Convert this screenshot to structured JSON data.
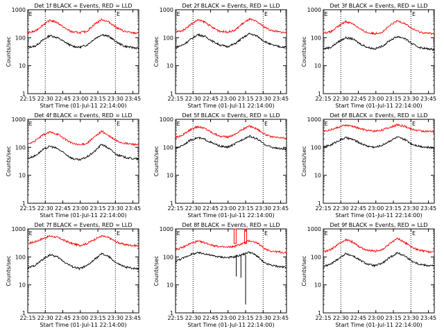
{
  "chart_data": [
    {
      "id": "1f",
      "type": "line",
      "title": "Det 1f BLACK = Events, RED = LLD",
      "xlabel": "Start Time (01-Jul-11 22:14:00)",
      "ylabel": "Counts/sec",
      "yscale": "log",
      "ylim": [
        1,
        1000
      ],
      "xlim": [
        "22:15",
        "23:50"
      ],
      "x_ticks": [
        "22:15",
        "22:30",
        "22:45",
        "23:00",
        "23:15",
        "23:30",
        "23:45"
      ],
      "y_ticks": [
        "1",
        "10",
        "100",
        "1000"
      ],
      "markers": [
        {
          "x": "22:30",
          "label": ""
        },
        {
          "x": "23:30",
          "label": "E"
        }
      ],
      "top_labels": [
        "E",
        "E"
      ],
      "series": [
        {
          "name": "BLACK",
          "color": "#000000",
          "values": [
            45,
            50,
            80,
            120,
            100,
            70,
            50,
            45,
            55,
            90,
            130,
            110,
            70,
            50,
            45,
            42
          ]
        },
        {
          "name": "RED",
          "color": "#ff0000",
          "values": [
            150,
            170,
            280,
            420,
            350,
            220,
            160,
            150,
            170,
            300,
            450,
            360,
            230,
            170,
            150,
            145
          ]
        }
      ]
    },
    {
      "id": "2f",
      "type": "line",
      "title": "Det 2f BLACK = Events, RED = LLD",
      "xlabel": "Start Time (01-Jul-11 22:14:00)",
      "ylabel": "Counts/sec",
      "yscale": "log",
      "ylim": [
        1,
        1000
      ],
      "xlim": [
        "22:15",
        "23:50"
      ],
      "x_ticks": [
        "22:15",
        "22:30",
        "22:45",
        "23:00",
        "23:15",
        "23:30",
        "23:45"
      ],
      "y_ticks": [
        "1",
        "10",
        "100",
        "1000"
      ],
      "markers": [
        {
          "x": "22:30",
          "label": ""
        },
        {
          "x": "23:30",
          "label": "E"
        }
      ],
      "top_labels": [
        "E",
        "E"
      ],
      "series": [
        {
          "name": "BLACK",
          "color": "#000000",
          "values": [
            45,
            55,
            85,
            130,
            110,
            75,
            55,
            48,
            60,
            95,
            140,
            115,
            75,
            55,
            48,
            45
          ]
        },
        {
          "name": "RED",
          "color": "#ff0000",
          "values": [
            160,
            180,
            290,
            430,
            360,
            230,
            170,
            160,
            180,
            310,
            460,
            370,
            240,
            180,
            160,
            150
          ]
        }
      ]
    },
    {
      "id": "3f",
      "type": "line",
      "title": "Det 3f BLACK = Events, RED = LLD",
      "xlabel": "Start Time (01-Jul-11 22:14:00)",
      "ylabel": "Counts/sec",
      "yscale": "log",
      "ylim": [
        1,
        1000
      ],
      "xlim": [
        "22:15",
        "23:50"
      ],
      "x_ticks": [
        "22:15",
        "22:30",
        "22:45",
        "23:00",
        "23:15",
        "23:30",
        "23:45"
      ],
      "y_ticks": [
        "1",
        "10",
        "100",
        "1000"
      ],
      "markers": [
        {
          "x": "22:30",
          "label": ""
        },
        {
          "x": "23:30",
          "label": "E"
        }
      ],
      "top_labels": [
        "E",
        "E"
      ],
      "series": [
        {
          "name": "BLACK",
          "color": "#000000",
          "values": [
            40,
            45,
            70,
            100,
            90,
            60,
            45,
            40,
            50,
            80,
            110,
            95,
            60,
            45,
            40,
            38
          ]
        },
        {
          "name": "RED",
          "color": "#ff0000",
          "values": [
            150,
            160,
            250,
            380,
            320,
            200,
            150,
            140,
            160,
            270,
            400,
            330,
            210,
            160,
            145,
            140
          ]
        }
      ]
    },
    {
      "id": "4f",
      "type": "line",
      "title": "Det 4f BLACK = Events, RED = LLD",
      "xlabel": "Start Time (01-Jul-11 22:14:00)",
      "ylabel": "Counts/sec",
      "yscale": "log",
      "ylim": [
        1,
        1000
      ],
      "xlim": [
        "22:15",
        "23:50"
      ],
      "x_ticks": [
        "22:15",
        "22:30",
        "22:45",
        "23:00",
        "23:15",
        "23:30",
        "23:45"
      ],
      "y_ticks": [
        "1",
        "10",
        "100",
        "1000"
      ],
      "markers": [
        {
          "x": "22:30",
          "label": ""
        },
        {
          "x": "23:30",
          "label": "E"
        }
      ],
      "top_labels": [
        "E",
        "E"
      ],
      "series": [
        {
          "name": "BLACK",
          "color": "#000000",
          "values": [
            40,
            50,
            80,
            110,
            90,
            60,
            40,
            35,
            45,
            70,
            130,
            90,
            55,
            45,
            40,
            38
          ]
        },
        {
          "name": "RED",
          "color": "#ff0000",
          "values": [
            130,
            170,
            270,
            350,
            300,
            200,
            140,
            120,
            140,
            230,
            380,
            250,
            170,
            140,
            130,
            125
          ]
        }
      ]
    },
    {
      "id": "5f",
      "type": "line",
      "title": "Det 5f BLACK = Events, RED = LLD",
      "xlabel": "Start Time (01-Jul-11 22:14:00)",
      "ylabel": "Counts/sec",
      "yscale": "log",
      "ylim": [
        1,
        1000
      ],
      "xlim": [
        "22:15",
        "23:50"
      ],
      "x_ticks": [
        "22:15",
        "22:30",
        "22:45",
        "23:00",
        "23:15",
        "23:30",
        "23:45"
      ],
      "y_ticks": [
        "1",
        "10",
        "100",
        "1000"
      ],
      "markers": [
        {
          "x": "22:30",
          "label": ""
        },
        {
          "x": "23:30",
          "label": "E"
        }
      ],
      "top_labels": [
        "E",
        "E"
      ],
      "series": [
        {
          "name": "BLACK",
          "color": "#000000",
          "values": [
            90,
            120,
            180,
            220,
            190,
            140,
            110,
            100,
            130,
            190,
            250,
            200,
            130,
            100,
            90,
            85
          ]
        },
        {
          "name": "RED",
          "color": "#ff0000",
          "values": [
            220,
            280,
            420,
            550,
            470,
            330,
            250,
            230,
            290,
            430,
            580,
            460,
            300,
            230,
            220,
            210
          ]
        }
      ]
    },
    {
      "id": "6f",
      "type": "line",
      "title": "Det 6f BLACK = Events, RED = LLD",
      "xlabel": "Start Time (01-Jul-11 22:14:00)",
      "ylabel": "Counts/sec",
      "yscale": "log",
      "ylim": [
        1,
        1000
      ],
      "xlim": [
        "22:15",
        "23:50"
      ],
      "x_ticks": [
        "22:15",
        "22:30",
        "22:45",
        "23:00",
        "23:15",
        "23:30",
        "23:45"
      ],
      "y_ticks": [
        "1",
        "10",
        "100",
        "1000"
      ],
      "markers": [
        {
          "x": "22:30",
          "label": ""
        },
        {
          "x": "23:30",
          "label": "E"
        }
      ],
      "top_labels": [
        "E",
        "E"
      ],
      "series": [
        {
          "name": "BLACK",
          "color": "#000000",
          "values": [
            100,
            120,
            170,
            220,
            190,
            140,
            110,
            100,
            120,
            170,
            230,
            190,
            130,
            110,
            100,
            95
          ]
        },
        {
          "name": "RED",
          "color": "#ff0000",
          "values": [
            380,
            420,
            520,
            620,
            560,
            460,
            400,
            380,
            420,
            520,
            640,
            560,
            440,
            390,
            370,
            360
          ]
        }
      ]
    },
    {
      "id": "7f",
      "type": "line",
      "title": "Det 7f BLACK = Events, RED = LLD",
      "xlabel": "Start Time (01-Jul-11 22:14:00)",
      "ylabel": "Counts/sec",
      "yscale": "log",
      "ylim": [
        1,
        1000
      ],
      "xlim": [
        "22:15",
        "23:50"
      ],
      "x_ticks": [
        "22:15",
        "22:30",
        "22:45",
        "23:00",
        "23:15",
        "23:30",
        "23:45"
      ],
      "y_ticks": [
        "1",
        "10",
        "100",
        "1000"
      ],
      "markers": [
        {
          "x": "22:30",
          "label": ""
        },
        {
          "x": "23:30",
          "label": "E"
        }
      ],
      "top_labels": [
        "E",
        "E"
      ],
      "series": [
        {
          "name": "BLACK",
          "color": "#000000",
          "values": [
            40,
            50,
            80,
            120,
            100,
            65,
            45,
            38,
            48,
            80,
            130,
            100,
            60,
            45,
            40,
            38
          ]
        },
        {
          "name": "RED",
          "color": "#ff0000",
          "values": [
            300,
            350,
            450,
            560,
            500,
            380,
            300,
            260,
            300,
            420,
            560,
            480,
            340,
            280,
            260,
            250
          ]
        }
      ]
    },
    {
      "id": "8f",
      "type": "line",
      "title": "Det 8f BLACK = Events, RED = LLD",
      "xlabel": "Start Time (01-Jul-11 22:14:00)",
      "ylabel": "Counts/sec",
      "yscale": "log",
      "ylim": [
        1,
        1000
      ],
      "xlim": [
        "22:15",
        "23:50"
      ],
      "x_ticks": [
        "22:15",
        "22:30",
        "22:45",
        "23:00",
        "23:15",
        "23:30",
        "23:45"
      ],
      "y_ticks": [
        "1",
        "10",
        "100",
        "1000"
      ],
      "markers": [
        {
          "x": "22:30",
          "label": ""
        },
        {
          "x": "23:30",
          "label": "E"
        }
      ],
      "top_labels": [
        "E",
        "E"
      ],
      "spikes": [
        {
          "x": "23:07",
          "bottom": 20
        },
        {
          "x": "23:11",
          "bottom": 18
        },
        {
          "x": "23:15",
          "bottom": 2
        }
      ],
      "red_bursts": [
        {
          "x": "23:06",
          "top": 1000
        },
        {
          "x": "23:15",
          "top": 1000
        }
      ],
      "series": [
        {
          "name": "BLACK",
          "color": "#000000",
          "values": [
            70,
            90,
            120,
            140,
            130,
            110,
            100,
            95,
            100,
            120,
            150,
            110,
            60,
            50,
            45,
            42
          ]
        },
        {
          "name": "RED",
          "color": "#ff0000",
          "values": [
            180,
            220,
            300,
            360,
            320,
            260,
            230,
            220,
            240,
            300,
            380,
            320,
            200,
            160,
            150,
            140
          ]
        }
      ]
    },
    {
      "id": "9f",
      "type": "line",
      "title": "Det 9f BLACK = Events, RED = LLD",
      "xlabel": "Start Time (01-Jul-11 22:14:00)",
      "ylabel": "Counts/sec",
      "yscale": "log",
      "ylim": [
        1,
        1000
      ],
      "xlim": [
        "22:15",
        "23:50"
      ],
      "x_ticks": [
        "22:15",
        "22:30",
        "22:45",
        "23:00",
        "23:15",
        "23:30",
        "23:45"
      ],
      "y_ticks": [
        "1",
        "10",
        "100",
        "1000"
      ],
      "markers": [
        {
          "x": "22:30",
          "label": ""
        },
        {
          "x": "23:30",
          "label": "E"
        }
      ],
      "top_labels": [
        "E",
        "E"
      ],
      "series": [
        {
          "name": "BLACK",
          "color": "#000000",
          "values": [
            45,
            55,
            85,
            130,
            110,
            75,
            55,
            48,
            60,
            95,
            140,
            110,
            70,
            55,
            50,
            48
          ]
        },
        {
          "name": "RED",
          "color": "#ff0000",
          "values": [
            150,
            180,
            280,
            420,
            340,
            220,
            170,
            160,
            180,
            300,
            460,
            330,
            220,
            170,
            155,
            150
          ]
        }
      ]
    }
  ]
}
